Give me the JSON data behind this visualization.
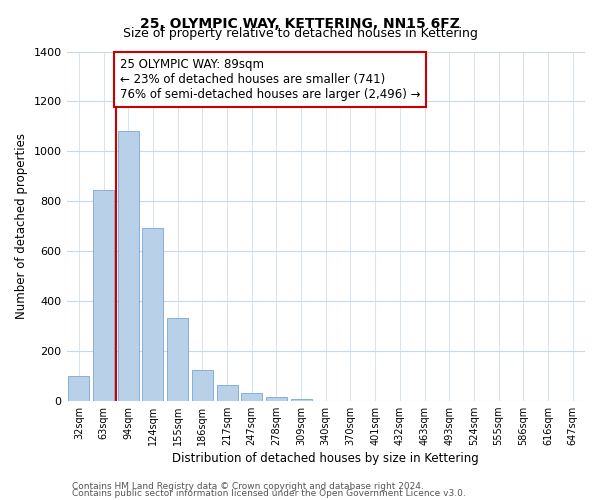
{
  "title1": "25, OLYMPIC WAY, KETTERING, NN15 6FZ",
  "title2": "Size of property relative to detached houses in Kettering",
  "xlabel": "Distribution of detached houses by size in Kettering",
  "ylabel": "Number of detached properties",
  "bar_labels": [
    "32sqm",
    "63sqm",
    "94sqm",
    "124sqm",
    "155sqm",
    "186sqm",
    "217sqm",
    "247sqm",
    "278sqm",
    "309sqm",
    "340sqm",
    "370sqm",
    "401sqm",
    "432sqm",
    "463sqm",
    "493sqm",
    "524sqm",
    "555sqm",
    "586sqm",
    "616sqm",
    "647sqm"
  ],
  "bar_values": [
    100,
    843,
    1080,
    693,
    330,
    122,
    62,
    30,
    15,
    5,
    0,
    0,
    0,
    0,
    0,
    0,
    0,
    0,
    0,
    0,
    0
  ],
  "bar_color": "#b8d0e8",
  "bar_edge_color": "#6699cc",
  "vline_x": 1.5,
  "vline_color": "#cc0000",
  "annotation_text": "25 OLYMPIC WAY: 89sqm\n← 23% of detached houses are smaller (741)\n76% of semi-detached houses are larger (2,496) →",
  "annotation_box_color": "#ffffff",
  "annotation_border_color": "#cc0000",
  "ylim": [
    0,
    1400
  ],
  "yticks": [
    0,
    200,
    400,
    600,
    800,
    1000,
    1200,
    1400
  ],
  "footer1": "Contains HM Land Registry data © Crown copyright and database right 2024.",
  "footer2": "Contains public sector information licensed under the Open Government Licence v3.0.",
  "bg_color": "#ffffff",
  "grid_color": "#c8d8ec",
  "title1_fontsize": 10,
  "title2_fontsize": 9,
  "xlabel_fontsize": 8.5,
  "ylabel_fontsize": 8.5,
  "annotation_fontsize": 8.5,
  "footer_fontsize": 6.5
}
